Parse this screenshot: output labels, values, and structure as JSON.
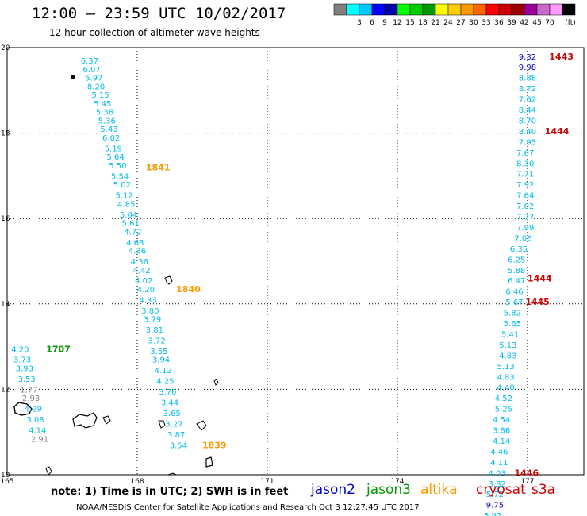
{
  "title": "12:00 – 23:59 UTC 10/02/2017",
  "subtitle": "12 hour collection of altimeter wave heights",
  "colorbar": {
    "colors": [
      "#7f7f7f",
      "#00ffff",
      "#00c8ff",
      "#0000ff",
      "#0000aa",
      "#00ff00",
      "#00cc00",
      "#009900",
      "#ffff00",
      "#ffcc00",
      "#ff9900",
      "#ff6600",
      "#ff0000",
      "#cc0000",
      "#990000",
      "#990099",
      "#cc66cc",
      "#ff99ff",
      "#000000"
    ],
    "labels": [
      "3",
      "6",
      "9",
      "12",
      "15",
      "18",
      "21",
      "24",
      "27",
      "30",
      "33",
      "36",
      "39",
      "42",
      "45",
      "70"
    ],
    "unit": "(ft)"
  },
  "axes": {
    "lon_ticks": [
      "165",
      "168",
      "171",
      "174",
      "177"
    ],
    "lat_ticks": [
      "20",
      "18",
      "16",
      "14",
      "12",
      "10"
    ],
    "lon_range": [
      165,
      178.3
    ],
    "lat_range": [
      10,
      20
    ]
  },
  "note": "note:  1) Time is in UTC;  2) SWH is in feet",
  "legend": [
    {
      "label": "jason2",
      "color": "#0000cc"
    },
    {
      "label": "jason3",
      "color": "#009900"
    },
    {
      "label": "altika",
      "color": "#ff9900"
    },
    {
      "label": "cryosat",
      "color": "#cc0000"
    },
    {
      "label": "s3a",
      "color": "#cc0000"
    }
  ],
  "footer": "NOAA/NESDIS Center for Satellite Applications and Research     Oct  3 12:27:45 UTC 2017",
  "tracks": [
    {
      "satellite": "altika",
      "time": "1841",
      "time_lon": 168.2,
      "time_lat": 17.2,
      "time_color": "#ff9900",
      "points": [
        {
          "lon": 166.9,
          "lat": 19.7,
          "v": "6.37",
          "c": "#00bbee"
        },
        {
          "lon": 166.95,
          "lat": 19.5,
          "v": "6.07",
          "c": "#00bbee"
        },
        {
          "lon": 167.0,
          "lat": 19.3,
          "v": "5.97",
          "c": "#00bbee"
        },
        {
          "lon": 167.05,
          "lat": 19.1,
          "v": "8.20",
          "c": "#00bbee"
        },
        {
          "lon": 167.15,
          "lat": 18.9,
          "v": "5.15",
          "c": "#00bbee"
        },
        {
          "lon": 167.2,
          "lat": 18.7,
          "v": "5.45",
          "c": "#00bbee"
        },
        {
          "lon": 167.25,
          "lat": 18.5,
          "v": "5.38",
          "c": "#00bbee"
        },
        {
          "lon": 167.3,
          "lat": 18.3,
          "v": "5.36",
          "c": "#00bbee"
        },
        {
          "lon": 167.35,
          "lat": 18.1,
          "v": "5.43",
          "c": "#00bbee"
        },
        {
          "lon": 167.4,
          "lat": 17.9,
          "v": "6.02",
          "c": "#00bbee"
        },
        {
          "lon": 167.45,
          "lat": 17.65,
          "v": "5.19",
          "c": "#00bbee"
        },
        {
          "lon": 167.5,
          "lat": 17.45,
          "v": "5.64",
          "c": "#00bbee"
        },
        {
          "lon": 167.55,
          "lat": 17.25,
          "v": "5.50",
          "c": "#00bbee"
        },
        {
          "lon": 167.6,
          "lat": 17.0,
          "v": "5.54",
          "c": "#00bbee"
        },
        {
          "lon": 167.65,
          "lat": 16.8,
          "v": "5.02",
          "c": "#00bbee"
        },
        {
          "lon": 167.7,
          "lat": 16.55,
          "v": "5.12",
          "c": "#00bbee"
        },
        {
          "lon": 167.75,
          "lat": 16.35,
          "v": "4.85",
          "c": "#00bbee"
        },
        {
          "lon": 167.8,
          "lat": 16.1,
          "v": "5.04",
          "c": "#00bbee"
        },
        {
          "lon": 167.85,
          "lat": 15.9,
          "v": "5.61",
          "c": "#00bbee"
        },
        {
          "lon": 167.9,
          "lat": 15.7,
          "v": "4.72",
          "c": "#00bbee"
        },
        {
          "lon": 167.95,
          "lat": 15.45,
          "v": "4.68",
          "c": "#00bbee"
        },
        {
          "lon": 168.0,
          "lat": 15.25,
          "v": "4.36",
          "c": "#00bbee"
        },
        {
          "lon": 168.05,
          "lat": 15.0,
          "v": "4.36",
          "c": "#00bbee"
        },
        {
          "lon": 168.1,
          "lat": 14.8,
          "v": "4.42",
          "c": "#00bbee"
        },
        {
          "lon": 168.15,
          "lat": 14.55,
          "v": "4.02",
          "c": "#00bbee"
        },
        {
          "lon": 168.2,
          "lat": 14.35,
          "v": "4.20",
          "c": "#00bbee"
        },
        {
          "lon": 168.25,
          "lat": 14.1,
          "v": "4.33",
          "c": "#00bbee"
        },
        {
          "lon": 168.3,
          "lat": 13.85,
          "v": "3.80",
          "c": "#00bbee"
        },
        {
          "lon": 168.35,
          "lat": 13.65,
          "v": "3.79",
          "c": "#00bbee"
        },
        {
          "lon": 168.4,
          "lat": 13.4,
          "v": "3.81",
          "c": "#00bbee"
        },
        {
          "lon": 168.45,
          "lat": 13.15,
          "v": "3.72",
          "c": "#00bbee"
        },
        {
          "lon": 168.5,
          "lat": 12.9,
          "v": "3.55",
          "c": "#00bbee"
        },
        {
          "lon": 168.55,
          "lat": 12.7,
          "v": "3.94",
          "c": "#00bbee"
        },
        {
          "lon": 168.6,
          "lat": 12.45,
          "v": "4.12",
          "c": "#00bbee"
        },
        {
          "lon": 168.65,
          "lat": 12.2,
          "v": "4.25",
          "c": "#00bbee"
        },
        {
          "lon": 168.7,
          "lat": 11.95,
          "v": "3.76",
          "c": "#00bbee"
        },
        {
          "lon": 168.75,
          "lat": 11.7,
          "v": "3.44",
          "c": "#00bbee"
        },
        {
          "lon": 168.8,
          "lat": 11.45,
          "v": "3.65",
          "c": "#00bbee"
        },
        {
          "lon": 168.85,
          "lat": 11.2,
          "v": "3.27",
          "c": "#00bbee"
        },
        {
          "lon": 168.9,
          "lat": 10.95,
          "v": "3.87",
          "c": "#00bbee"
        },
        {
          "lon": 168.95,
          "lat": 10.7,
          "v": "3.54",
          "c": "#00bbee"
        }
      ]
    },
    {
      "satellite": "altika",
      "time": "1840",
      "time_lon": 168.9,
      "time_lat": 14.35,
      "time_color": "#ff9900",
      "points": []
    },
    {
      "satellite": "altika",
      "time": "1839",
      "time_lon": 169.5,
      "time_lat": 10.7,
      "time_color": "#ff9900",
      "points": []
    },
    {
      "satellite": "jason3",
      "time": "1707",
      "time_lon": 165.9,
      "time_lat": 12.95,
      "time_color": "#009900",
      "points": [
        {
          "lon": 165.3,
          "lat": 12.95,
          "v": "4.20",
          "c": "#00bbee"
        },
        {
          "lon": 165.35,
          "lat": 12.7,
          "v": "3.73",
          "c": "#00bbee"
        },
        {
          "lon": 165.4,
          "lat": 12.5,
          "v": "3.93",
          "c": "#00bbee"
        },
        {
          "lon": 165.45,
          "lat": 12.25,
          "v": "3.53",
          "c": "#00bbee"
        },
        {
          "lon": 165.5,
          "lat": 12.0,
          "v": "1.77",
          "c": "#888888"
        },
        {
          "lon": 165.55,
          "lat": 11.8,
          "v": "2.93",
          "c": "#888888"
        },
        {
          "lon": 165.6,
          "lat": 11.55,
          "v": "4.29",
          "c": "#00bbee"
        },
        {
          "lon": 165.65,
          "lat": 11.3,
          "v": "3.08",
          "c": "#00bbee"
        },
        {
          "lon": 165.7,
          "lat": 11.05,
          "v": "4.14",
          "c": "#00bbee"
        },
        {
          "lon": 165.75,
          "lat": 10.85,
          "v": "2.91",
          "c": "#888888"
        }
      ]
    },
    {
      "satellite": "cryosat",
      "time": "1443",
      "time_lon": 177.5,
      "time_lat": 19.8,
      "time_color": "#cc0000",
      "points": [
        {
          "lon": 177.0,
          "lat": 19.8,
          "v": "9.32",
          "c": "#0000cc"
        },
        {
          "lon": 177.0,
          "lat": 19.55,
          "v": "9.98",
          "c": "#0000cc"
        },
        {
          "lon": 177.0,
          "lat": 19.3,
          "v": "8.88",
          "c": "#00bbee"
        },
        {
          "lon": 177.0,
          "lat": 19.05,
          "v": "8.72",
          "c": "#00bbee"
        },
        {
          "lon": 177.0,
          "lat": 18.8,
          "v": "7.62",
          "c": "#00bbee"
        },
        {
          "lon": 177.0,
          "lat": 18.55,
          "v": "8.44",
          "c": "#00bbee"
        },
        {
          "lon": 177.0,
          "lat": 18.3,
          "v": "8.70",
          "c": "#00bbee"
        },
        {
          "lon": 177.0,
          "lat": 18.05,
          "v": "8.40",
          "c": "#00bbee"
        },
        {
          "lon": 177.0,
          "lat": 17.8,
          "v": "7.95",
          "c": "#00bbee"
        },
        {
          "lon": 176.95,
          "lat": 17.55,
          "v": "7.67",
          "c": "#00bbee"
        },
        {
          "lon": 176.95,
          "lat": 17.3,
          "v": "8.30",
          "c": "#00bbee"
        },
        {
          "lon": 176.95,
          "lat": 17.05,
          "v": "7.71",
          "c": "#00bbee"
        },
        {
          "lon": 176.95,
          "lat": 16.8,
          "v": "7.92",
          "c": "#00bbee"
        },
        {
          "lon": 176.95,
          "lat": 16.55,
          "v": "7.64",
          "c": "#00bbee"
        },
        {
          "lon": 176.95,
          "lat": 16.3,
          "v": "7.02",
          "c": "#00bbee"
        },
        {
          "lon": 176.95,
          "lat": 16.05,
          "v": "7.77",
          "c": "#00bbee"
        },
        {
          "lon": 176.95,
          "lat": 15.8,
          "v": "7.99",
          "c": "#00bbee"
        },
        {
          "lon": 176.9,
          "lat": 15.55,
          "v": "7.06",
          "c": "#00bbee"
        }
      ]
    },
    {
      "satellite": "cryosat",
      "time": "1444",
      "time_lon": 177.4,
      "time_lat": 18.05,
      "time_color": "#cc0000",
      "points": []
    },
    {
      "satellite": "cryosat",
      "time": "1444",
      "time_lon": 177.0,
      "time_lat": 14.6,
      "time_color": "#cc0000",
      "points": [
        {
          "lon": 176.8,
          "lat": 15.3,
          "v": "6.35",
          "c": "#00bbee"
        },
        {
          "lon": 176.75,
          "lat": 15.05,
          "v": "6.25",
          "c": "#00bbee"
        },
        {
          "lon": 176.75,
          "lat": 14.8,
          "v": "5.88",
          "c": "#00bbee"
        },
        {
          "lon": 176.75,
          "lat": 14.55,
          "v": "6.47",
          "c": "#00bbee"
        },
        {
          "lon": 176.7,
          "lat": 14.3,
          "v": "6.46",
          "c": "#00bbee"
        },
        {
          "lon": 176.7,
          "lat": 14.05,
          "v": "5.67",
          "c": "#00bbee"
        },
        {
          "lon": 176.65,
          "lat": 13.8,
          "v": "5.82",
          "c": "#00bbee"
        },
        {
          "lon": 176.65,
          "lat": 13.55,
          "v": "5.65",
          "c": "#00bbee"
        },
        {
          "lon": 176.6,
          "lat": 13.3,
          "v": "5.41",
          "c": "#00bbee"
        },
        {
          "lon": 176.55,
          "lat": 13.05,
          "v": "5.13",
          "c": "#00bbee"
        },
        {
          "lon": 176.55,
          "lat": 12.8,
          "v": "4.83",
          "c": "#00bbee"
        },
        {
          "lon": 176.5,
          "lat": 12.55,
          "v": "5.13",
          "c": "#00bbee"
        },
        {
          "lon": 176.5,
          "lat": 12.3,
          "v": "4.83",
          "c": "#00bbee"
        },
        {
          "lon": 176.5,
          "lat": 12.05,
          "v": "4.40",
          "c": "#00bbee"
        },
        {
          "lon": 176.45,
          "lat": 11.8,
          "v": "4.52",
          "c": "#00bbee"
        },
        {
          "lon": 176.45,
          "lat": 11.55,
          "v": "5.25",
          "c": "#00bbee"
        },
        {
          "lon": 176.4,
          "lat": 11.3,
          "v": "4.54",
          "c": "#00bbee"
        },
        {
          "lon": 176.4,
          "lat": 11.05,
          "v": "3.86",
          "c": "#00bbee"
        },
        {
          "lon": 176.4,
          "lat": 10.8,
          "v": "4.14",
          "c": "#00bbee"
        },
        {
          "lon": 176.35,
          "lat": 10.55,
          "v": "4.46",
          "c": "#00bbee"
        },
        {
          "lon": 176.35,
          "lat": 10.3,
          "v": "4.11",
          "c": "#00bbee"
        },
        {
          "lon": 176.3,
          "lat": 10.05,
          "v": "4.03",
          "c": "#00bbee"
        },
        {
          "lon": 176.3,
          "lat": 9.8,
          "v": "3.82",
          "c": "#00bbee"
        },
        {
          "lon": 176.25,
          "lat": 9.55,
          "v": "5.72",
          "c": "#00bbee"
        },
        {
          "lon": 176.25,
          "lat": 9.3,
          "v": "9.75",
          "c": "#0000cc"
        },
        {
          "lon": 176.2,
          "lat": 9.05,
          "v": "5.92",
          "c": "#00bbee"
        }
      ]
    },
    {
      "satellite": "cryosat",
      "time": "1445",
      "time_lon": 176.95,
      "time_lat": 14.05,
      "time_color": "#cc0000",
      "points": []
    },
    {
      "satellite": "cryosat",
      "time": "1446",
      "time_lon": 176.7,
      "time_lat": 10.05,
      "time_color": "#cc0000",
      "points": []
    }
  ]
}
